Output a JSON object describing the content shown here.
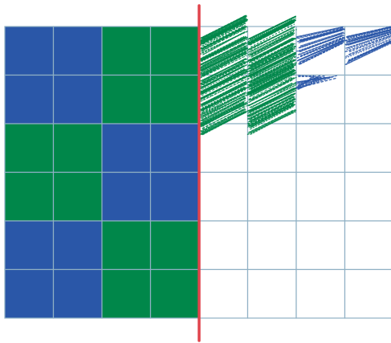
{
  "colors": {
    "blue": "#2a57a8",
    "green": "#00874a",
    "grid_line": "#8fb0c4",
    "mirror_line": "#e0444c",
    "background": "#ffffff"
  },
  "puzzle": {
    "rows": 6,
    "cols_per_side": 4,
    "left_pattern": [
      [
        "blue",
        "blue",
        "green",
        "green"
      ],
      [
        "blue",
        "blue",
        "green",
        "green"
      ],
      [
        "green",
        "green",
        "blue",
        "blue"
      ],
      [
        "green",
        "green",
        "blue",
        "blue"
      ],
      [
        "blue",
        "blue",
        "green",
        "green"
      ],
      [
        "blue",
        "blue",
        "green",
        "green"
      ]
    ],
    "right_scribbles": [
      {
        "row": 0,
        "col": 0,
        "color": "green",
        "fill": "dense"
      },
      {
        "row": 0,
        "col": 1,
        "color": "green",
        "fill": "dense"
      },
      {
        "row": 1,
        "col": 0,
        "color": "green",
        "fill": "dense"
      },
      {
        "row": 1,
        "col": 1,
        "color": "green",
        "fill": "dense"
      },
      {
        "row": 0,
        "col": 2,
        "color": "blue",
        "fill": "partial"
      },
      {
        "row": 0,
        "col": 3,
        "color": "blue",
        "fill": "partial"
      },
      {
        "row": 1,
        "col": 2,
        "color": "blue",
        "fill": "corner"
      }
    ]
  }
}
